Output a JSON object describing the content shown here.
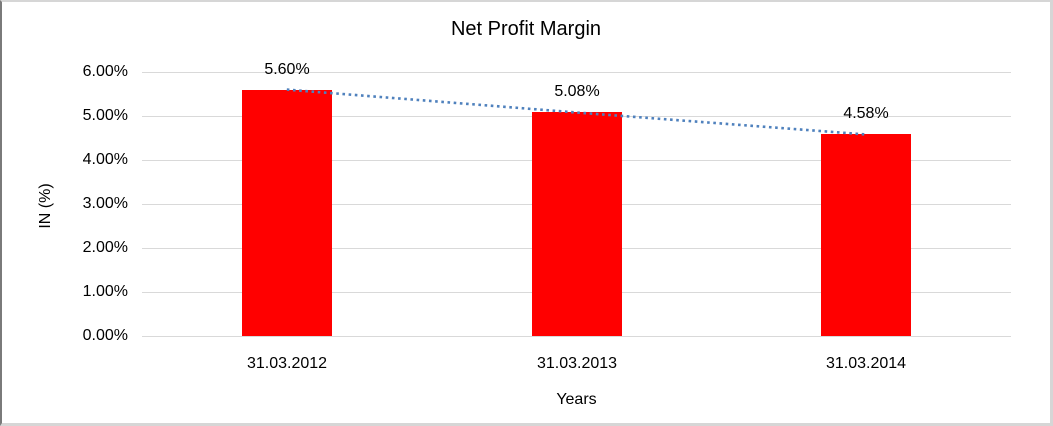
{
  "chart_data": {
    "type": "bar",
    "title": "Net Profit Margin",
    "categories": [
      "31.03.2012",
      "31.03.2013",
      "31.03.2014"
    ],
    "series": [
      {
        "name": "Net Profit Margin",
        "type": "bar",
        "color": "#FF0000",
        "values": [
          5.6,
          5.08,
          4.58
        ]
      },
      {
        "name": "Trendline",
        "type": "dotted-line",
        "color": "#4F81BD",
        "values": [
          5.6,
          5.08,
          4.58
        ]
      }
    ],
    "data_labels": [
      "5.60%",
      "5.08%",
      "4.58%"
    ],
    "xlabel": "Years",
    "ylabel": "IN (%)",
    "ylim": [
      0,
      6
    ],
    "ytick_step": 1,
    "ytick_labels": [
      "0.00%",
      "1.00%",
      "2.00%",
      "3.00%",
      "4.00%",
      "5.00%",
      "6.00%"
    ],
    "grid": true,
    "legend": "none",
    "gridline_color": "#D9D9D9",
    "background": "#FFFFFF"
  }
}
